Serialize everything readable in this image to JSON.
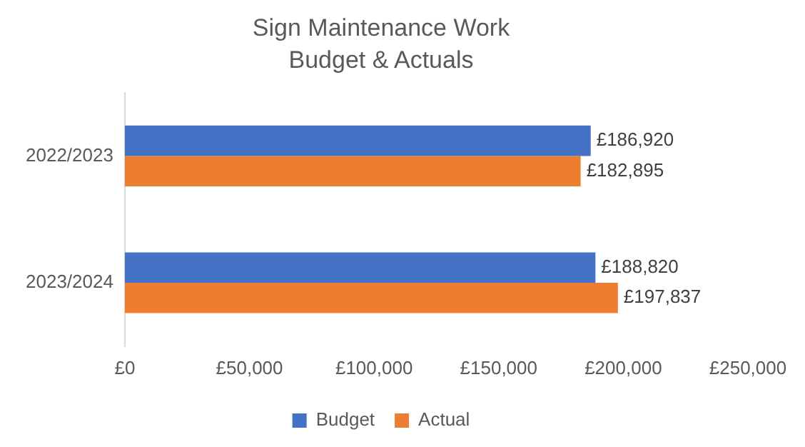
{
  "chart_data": {
    "type": "bar",
    "orientation": "horizontal",
    "title": "Sign Maintenance Work",
    "subtitle": "Budget & Actuals",
    "categories": [
      "2022/2023",
      "2023/2024"
    ],
    "series": [
      {
        "name": "Budget",
        "color": "#4472c4",
        "values": [
          186920,
          188820
        ],
        "value_labels": [
          "£186,920",
          "£188,820"
        ]
      },
      {
        "name": "Actual",
        "color": "#ed7d31",
        "values": [
          182895,
          197837
        ],
        "value_labels": [
          "£182,895",
          "£197,837"
        ]
      }
    ],
    "xlim": [
      0,
      250000
    ],
    "xticks": [
      {
        "value": 0,
        "label": "£0"
      },
      {
        "value": 50000,
        "label": "£50,000"
      },
      {
        "value": 100000,
        "label": "£100,000"
      },
      {
        "value": 150000,
        "label": "£150,000"
      },
      {
        "value": 200000,
        "label": "£200,000"
      },
      {
        "value": 250000,
        "label": "£250,000"
      }
    ],
    "grid": false,
    "legend": "bottom"
  }
}
